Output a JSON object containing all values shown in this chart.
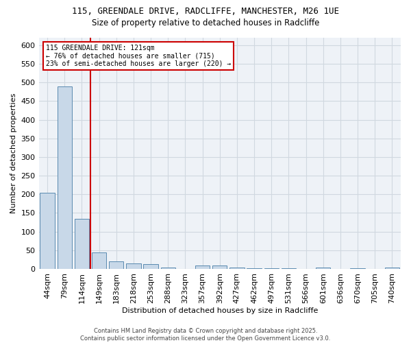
{
  "title_line1": "115, GREENDALE DRIVE, RADCLIFFE, MANCHESTER, M26 1UE",
  "title_line2": "Size of property relative to detached houses in Radcliffe",
  "xlabel": "Distribution of detached houses by size in Radcliffe",
  "ylabel": "Number of detached properties",
  "bar_labels": [
    "44sqm",
    "79sqm",
    "114sqm",
    "149sqm",
    "183sqm",
    "218sqm",
    "253sqm",
    "288sqm",
    "323sqm",
    "357sqm",
    "392sqm",
    "427sqm",
    "462sqm",
    "497sqm",
    "531sqm",
    "566sqm",
    "601sqm",
    "636sqm",
    "670sqm",
    "705sqm",
    "740sqm"
  ],
  "bar_values": [
    205,
    490,
    135,
    45,
    21,
    14,
    12,
    4,
    0,
    9,
    10,
    3,
    1,
    2,
    1,
    0,
    4,
    0,
    1,
    0,
    4
  ],
  "bar_color": "#c8d8e8",
  "bar_edge_color": "#5a8ab0",
  "grid_color": "#d0d8e0",
  "bg_color": "#eef2f7",
  "red_line_x": 2.5,
  "annotation_text": "115 GREENDALE DRIVE: 121sqm\n← 76% of detached houses are smaller (715)\n23% of semi-detached houses are larger (220) →",
  "annotation_box_color": "#ffffff",
  "annotation_box_edge": "#cc0000",
  "footnote": "Contains HM Land Registry data © Crown copyright and database right 2025.\nContains public sector information licensed under the Open Government Licence v3.0.",
  "ylim": [
    0,
    620
  ],
  "yticks": [
    0,
    50,
    100,
    150,
    200,
    250,
    300,
    350,
    400,
    450,
    500,
    550,
    600
  ]
}
